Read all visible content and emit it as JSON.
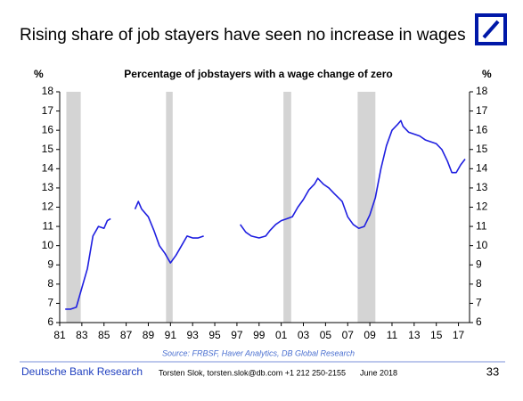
{
  "chart_data": {
    "type": "line",
    "title": "Rising share of job stayers have seen no increase in wages",
    "subtitle": "Percentage of jobstayers with a wage change of zero",
    "y_label": "%",
    "y2_label": "%",
    "source": "Source: FRBSF, Haver Analytics, DB Global Research",
    "color": "#1f1fe0",
    "recession_color": "#d4d4d4",
    "recessions": [
      [
        1981.6,
        1982.9
      ],
      [
        1990.6,
        1991.2
      ],
      [
        2001.2,
        2001.9
      ],
      [
        2007.9,
        2009.5
      ]
    ],
    "x": [
      1981.5,
      1982.0,
      1982.5,
      1983.0,
      1983.5,
      1984.0,
      1984.5,
      1985.0,
      1985.3,
      1985.6,
      1986.5,
      1987.8,
      1988.1,
      1988.4,
      1989.0,
      1989.5,
      1990.0,
      1990.5,
      1991.0,
      1991.5,
      1992.0,
      1992.5,
      1993.0,
      1993.5,
      1994.0,
      1995.0,
      1997.3,
      1997.8,
      1998.3,
      1999.0,
      1999.6,
      2000.0,
      2000.5,
      2001.0,
      2001.5,
      2002.0,
      2002.5,
      2003.0,
      2003.5,
      2004.0,
      2004.3,
      2004.8,
      2005.3,
      2005.8,
      2006.5,
      2007.0,
      2007.5,
      2008.0,
      2008.5,
      2009.0,
      2009.5,
      2010.0,
      2010.5,
      2011.0,
      2011.5,
      2011.8,
      2012.0,
      2012.5,
      2013.0,
      2013.5,
      2014.0,
      2014.5,
      2015.0,
      2015.5,
      2016.0,
      2016.4,
      2016.8,
      2017.2,
      2017.6
    ],
    "values": [
      6.7,
      6.7,
      6.8,
      7.8,
      8.8,
      10.5,
      11.0,
      10.9,
      11.3,
      11.4,
      null,
      11.9,
      12.3,
      11.9,
      11.5,
      10.8,
      10.0,
      9.6,
      9.1,
      9.5,
      10.0,
      10.5,
      10.4,
      10.4,
      10.5,
      null,
      11.1,
      10.7,
      10.5,
      10.4,
      10.5,
      10.8,
      11.1,
      11.3,
      11.4,
      11.5,
      12.0,
      12.4,
      12.9,
      13.2,
      13.5,
      13.2,
      13.0,
      12.7,
      12.3,
      11.5,
      11.1,
      10.9,
      11.0,
      11.6,
      12.5,
      14.0,
      15.2,
      16.0,
      16.3,
      16.5,
      16.2,
      15.9,
      15.8,
      15.7,
      15.5,
      15.4,
      15.3,
      15.0,
      14.4,
      13.8,
      13.8,
      14.2,
      14.5
    ],
    "xlim": [
      1981,
      2018
    ],
    "xticks": [
      {
        "value": 1981,
        "label": "81"
      },
      {
        "value": 1983,
        "label": "83"
      },
      {
        "value": 1985,
        "label": "85"
      },
      {
        "value": 1987,
        "label": "87"
      },
      {
        "value": 1989,
        "label": "89"
      },
      {
        "value": 1991,
        "label": "91"
      },
      {
        "value": 1993,
        "label": "93"
      },
      {
        "value": 1995,
        "label": "95"
      },
      {
        "value": 1997,
        "label": "97"
      },
      {
        "value": 1999,
        "label": "99"
      },
      {
        "value": 2001,
        "label": "01"
      },
      {
        "value": 2003,
        "label": "03"
      },
      {
        "value": 2005,
        "label": "05"
      },
      {
        "value": 2007,
        "label": "07"
      },
      {
        "value": 2009,
        "label": "09"
      },
      {
        "value": 2011,
        "label": "11"
      },
      {
        "value": 2013,
        "label": "13"
      },
      {
        "value": 2015,
        "label": "15"
      },
      {
        "value": 2017,
        "label": "17"
      }
    ],
    "ylim": [
      6,
      18
    ],
    "yticks": [
      6,
      7,
      8,
      9,
      10,
      11,
      12,
      13,
      14,
      15,
      16,
      17,
      18
    ],
    "y2lim": [
      6,
      18
    ],
    "y2ticks": [
      6,
      7,
      8,
      9,
      10,
      11,
      12,
      13,
      14,
      15,
      16,
      17,
      18
    ]
  },
  "footer": {
    "org": "Deutsche Bank Research",
    "author": "Torsten Slok, torsten.slok@db.com +1 212 250-2155",
    "date": "June 2018",
    "page": "33"
  }
}
